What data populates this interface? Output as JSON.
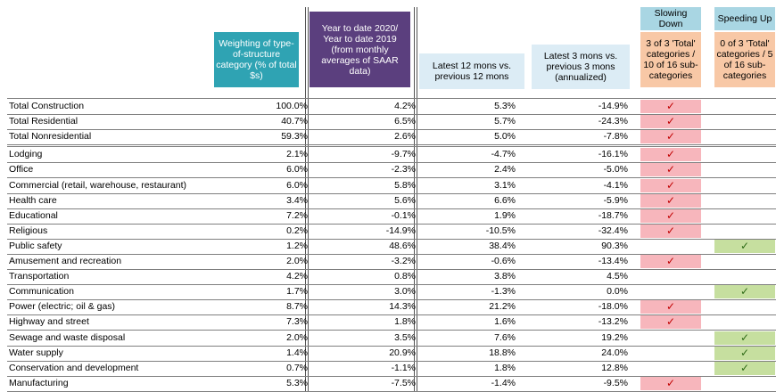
{
  "headers": {
    "weighting": "Weighting of type-of-structure category (% of total $s)",
    "ytd": "Year to date 2020/ Year to date 2019 (from monthly averages of SAAR data)",
    "last12": "Latest 12 mons vs. previous 12 mons",
    "last3": "Latest 3 mons vs. previous 3 mons (annualized)",
    "slowing_title": "Slowing Down",
    "slowing_sub": "3 of 3 'Total' categories / 10 of 16 sub-categories",
    "speeding_title": "Speeding Up",
    "speeding_sub": "0 of 3 'Total' categories / 5 of 16 sub-categories"
  },
  "check_mark": "✓",
  "colors": {
    "weighting_bg": "#2fa3b3",
    "ytd_bg": "#5b3f7e",
    "slowing_check_bg": "#f7b6bc",
    "speeding_check_bg": "#c6df9f"
  },
  "rows": [
    {
      "category": "Total Construction",
      "weight": "100.0%",
      "ytd": "4.2%",
      "m12": "5.3%",
      "m3": "-14.9%",
      "slowing": true,
      "speeding": false
    },
    {
      "category": "Total Residential",
      "weight": "40.7%",
      "ytd": "6.5%",
      "m12": "5.7%",
      "m3": "-24.3%",
      "slowing": true,
      "speeding": false
    },
    {
      "category": "Total Nonresidential",
      "weight": "59.3%",
      "ytd": "2.6%",
      "m12": "5.0%",
      "m3": "-7.8%",
      "slowing": true,
      "speeding": false
    },
    {
      "category": "Lodging",
      "weight": "2.1%",
      "ytd": "-9.7%",
      "m12": "-4.7%",
      "m3": "-16.1%",
      "slowing": true,
      "speeding": false
    },
    {
      "category": "Office",
      "weight": "6.0%",
      "ytd": "-2.3%",
      "m12": "2.4%",
      "m3": "-5.0%",
      "slowing": true,
      "speeding": false
    },
    {
      "category": "Commercial (retail, warehouse, restaurant)",
      "weight": "6.0%",
      "ytd": "5.8%",
      "m12": "3.1%",
      "m3": "-4.1%",
      "slowing": true,
      "speeding": false
    },
    {
      "category": "Health care",
      "weight": "3.4%",
      "ytd": "5.6%",
      "m12": "6.6%",
      "m3": "-5.9%",
      "slowing": true,
      "speeding": false
    },
    {
      "category": "Educational",
      "weight": "7.2%",
      "ytd": "-0.1%",
      "m12": "1.9%",
      "m3": "-18.7%",
      "slowing": true,
      "speeding": false
    },
    {
      "category": "Religious",
      "weight": "0.2%",
      "ytd": "-14.9%",
      "m12": "-10.5%",
      "m3": "-32.4%",
      "slowing": true,
      "speeding": false
    },
    {
      "category": "Public safety",
      "weight": "1.2%",
      "ytd": "48.6%",
      "m12": "38.4%",
      "m3": "90.3%",
      "slowing": false,
      "speeding": true
    },
    {
      "category": "Amusement and recreation",
      "weight": "2.0%",
      "ytd": "-3.2%",
      "m12": "-0.6%",
      "m3": "-13.4%",
      "slowing": true,
      "speeding": false
    },
    {
      "category": "Transportation",
      "weight": "4.2%",
      "ytd": "0.8%",
      "m12": "3.8%",
      "m3": "4.5%",
      "slowing": false,
      "speeding": false
    },
    {
      "category": "Communication",
      "weight": "1.7%",
      "ytd": "3.0%",
      "m12": "-1.3%",
      "m3": "0.0%",
      "slowing": false,
      "speeding": true
    },
    {
      "category": "Power (electric; oil & gas)",
      "weight": "8.7%",
      "ytd": "14.3%",
      "m12": "21.2%",
      "m3": "-18.0%",
      "slowing": true,
      "speeding": false
    },
    {
      "category": "Highway and street",
      "weight": "7.3%",
      "ytd": "1.8%",
      "m12": "1.6%",
      "m3": "-13.2%",
      "slowing": true,
      "speeding": false
    },
    {
      "category": "Sewage and waste disposal",
      "weight": "2.0%",
      "ytd": "3.5%",
      "m12": "7.6%",
      "m3": "19.2%",
      "slowing": false,
      "speeding": true
    },
    {
      "category": "Water supply",
      "weight": "1.4%",
      "ytd": "20.9%",
      "m12": "18.8%",
      "m3": "24.0%",
      "slowing": false,
      "speeding": true
    },
    {
      "category": "Conservation and development",
      "weight": "0.7%",
      "ytd": "-1.1%",
      "m12": "1.8%",
      "m3": "12.8%",
      "slowing": false,
      "speeding": true
    },
    {
      "category": "Manufacturing",
      "weight": "5.3%",
      "ytd": "-7.5%",
      "m12": "-1.4%",
      "m3": "-9.5%",
      "slowing": true,
      "speeding": false
    }
  ]
}
